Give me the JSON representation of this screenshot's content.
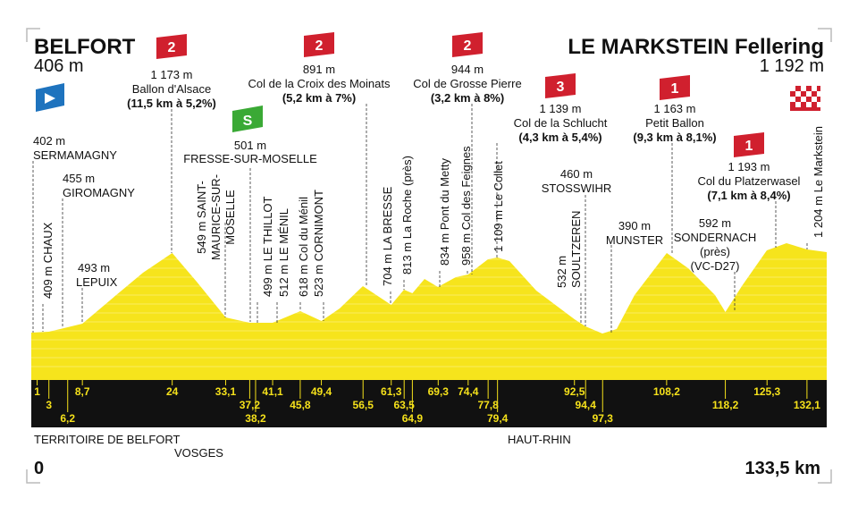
{
  "start": {
    "name": "BELFORT",
    "altitude": "406 m"
  },
  "finish": {
    "name": "LE MARKSTEIN Fellering",
    "altitude": "1 192 m"
  },
  "climbs": [
    {
      "category": "2",
      "altitude": "1 173 m",
      "name": "Ballon d'Alsace",
      "detail": "(11,5 km à 5,2%)"
    },
    {
      "category": "2",
      "altitude": "891 m",
      "name": "Col de la Croix des Moinats",
      "detail": "(5,2 km à 7%)"
    },
    {
      "category": "2",
      "altitude": "944 m",
      "name": "Col de Grosse Pierre",
      "detail": "(3,2 km à 8%)"
    },
    {
      "category": "3",
      "altitude": "1 139 m",
      "name": "Col de la Schlucht",
      "detail": "(4,3 km à 5,4%)"
    },
    {
      "category": "1",
      "altitude": "1 163 m",
      "name": "Petit Ballon",
      "detail": "(9,3 km à 8,1%)"
    },
    {
      "category": "1",
      "altitude": "1 193 m",
      "name": "Col du Platzerwasel",
      "detail": "(7,1 km à 8,4%)"
    }
  ],
  "sprint": {
    "symbol": "S",
    "altitude": "501 m",
    "name": "FRESSE-SUR-MOSELLE"
  },
  "places": [
    [
      "402 m",
      "SERMAMAGNY"
    ],
    [
      "455 m",
      "GIROMAGNY"
    ],
    [
      "493 m",
      "LEPUIX"
    ],
    [
      "460 m",
      "STOSSWIHR"
    ],
    [
      "390 m",
      "MUNSTER"
    ],
    [
      "592 m",
      "SONDERNACH",
      "(près)",
      "(VC-D27)"
    ]
  ],
  "vertical_places": [
    [
      "409 m CHAUX"
    ],
    [
      "549 m SAINT-",
      "MAURICE-SUR-",
      "MOSELLE"
    ],
    [
      "499 m LE THILLOT"
    ],
    [
      "512 m LE MÉNIL"
    ],
    [
      "618 m Col du Ménil"
    ],
    [
      "523 m CORNIMONT"
    ],
    [
      "704 m LA BRESSE"
    ],
    [
      "813 m La Roche (près)"
    ],
    [
      "834 m Pont du Metty"
    ],
    [
      "958 m Col des Feignes"
    ],
    [
      "1 109 m Le Collet"
    ],
    [
      "532 m",
      "SOULTZEREN"
    ],
    [
      "1 204 m Le Markstein"
    ]
  ],
  "km_marks": [
    "1",
    "3",
    "6,2",
    "8,7",
    "24",
    "33,1",
    "37,2",
    "38,2",
    "41,1",
    "45,8",
    "49,4",
    "56,5",
    "61,3",
    "63,5",
    "64,9",
    "69,3",
    "74,4",
    "77,8",
    "79,4",
    "92,5",
    "94,4",
    "97,3",
    "108,2",
    "118,2",
    "125,3",
    "132,1"
  ],
  "regions": [
    "TERRITOIRE DE BELFORT",
    "VOSGES",
    "HAUT-RHIN"
  ],
  "distance": {
    "start": "0",
    "end": "133,5 km"
  }
}
